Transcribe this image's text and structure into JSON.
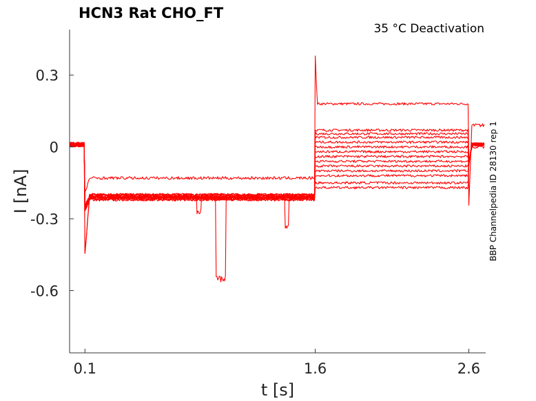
{
  "chart_data": {
    "type": "line",
    "title": "HCN3  Rat  CHO_FT",
    "annotation": "35 °C  Deactivation",
    "side_label": "BBP Channelpedia ID 28130 rep 1",
    "xlabel": "t [s]",
    "ylabel": "I [nA]",
    "x_ticks": [
      "0.1",
      "1.6",
      "2.6"
    ],
    "y_ticks": [
      "0.3",
      "0",
      "-0.3",
      "-0.6"
    ],
    "xlim": [
      0.0,
      2.71
    ],
    "ylim": [
      -0.86,
      0.49
    ],
    "grid": false,
    "trace_color": "#ff0000",
    "protocol": {
      "t_start": 0.0,
      "t_step1": 0.1,
      "t_step2": 1.6,
      "t_step3": 2.6,
      "t_end": 2.7
    },
    "series": [
      {
        "pre": 0.01,
        "step1": -0.215,
        "step2": 0.18,
        "tail": 0.0
      },
      {
        "pre": 0.01,
        "step1": -0.2,
        "step2": 0.07,
        "tail": 0.09
      },
      {
        "pre": 0.01,
        "step1": -0.21,
        "step2": 0.055,
        "tail": 0.01
      },
      {
        "pre": 0.01,
        "step1": -0.205,
        "step2": 0.04,
        "tail": 0.01
      },
      {
        "pre": 0.01,
        "step1": -0.21,
        "step2": 0.02,
        "tail": 0.01
      },
      {
        "pre": 0.01,
        "step1": -0.2,
        "step2": 0.0,
        "tail": 0.01
      },
      {
        "pre": 0.01,
        "step1": -0.215,
        "step2": -0.02,
        "tail": 0.01
      },
      {
        "pre": 0.01,
        "step1": -0.21,
        "step2": -0.04,
        "tail": 0.01
      },
      {
        "pre": 0.01,
        "step1": -0.2,
        "step2": -0.06,
        "tail": 0.01
      },
      {
        "pre": 0.01,
        "step1": -0.22,
        "step2": -0.08,
        "tail": 0.01
      },
      {
        "pre": 0.01,
        "step1": -0.21,
        "step2": -0.1,
        "tail": 0.01
      },
      {
        "pre": 0.01,
        "step1": -0.21,
        "step2": -0.12,
        "tail": 0.01
      },
      {
        "pre": 0.01,
        "step1": -0.13,
        "step2": -0.15,
        "tail": 0.01
      },
      {
        "pre": 0.01,
        "step1": -0.22,
        "step2": -0.17,
        "tail": 0.01
      }
    ]
  }
}
